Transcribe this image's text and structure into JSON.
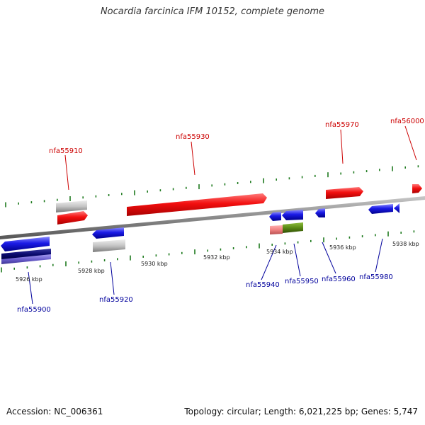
{
  "title": "Nocardia farcinica IFM 10152, complete genome",
  "footer": {
    "accession": "Accession: NC_006361",
    "summary": "Topology: circular; Length: 6,021,225 bp; Genes: 5,747"
  },
  "colors": {
    "backbone": "#8a8a8a",
    "tick": "#1e7a1e",
    "forward_label": "#cc0000",
    "reverse_label": "#00009c",
    "red_gene": "#f20f0f",
    "blue_gene": "#1a1ae6",
    "navy_gene": "#0a0a6e",
    "violet_gene": "#6b5fcf",
    "grey_gene": "#c4c4c4",
    "pink_gene": "#f08080",
    "olive_gene": "#5a8a14"
  },
  "scale_labels": [
    "5926 kbp",
    "5928 kbp",
    "5930 kbp",
    "5932 kbp",
    "5934 kbp",
    "5936 kbp",
    "5938 kbp"
  ],
  "forward_gene_labels": [
    "nfa55910",
    "nfa55930",
    "nfa55970",
    "nfa56000"
  ],
  "reverse_gene_labels": [
    "nfa55900",
    "nfa55920",
    "nfa55940",
    "nfa55950",
    "nfa55960",
    "nfa55980"
  ]
}
